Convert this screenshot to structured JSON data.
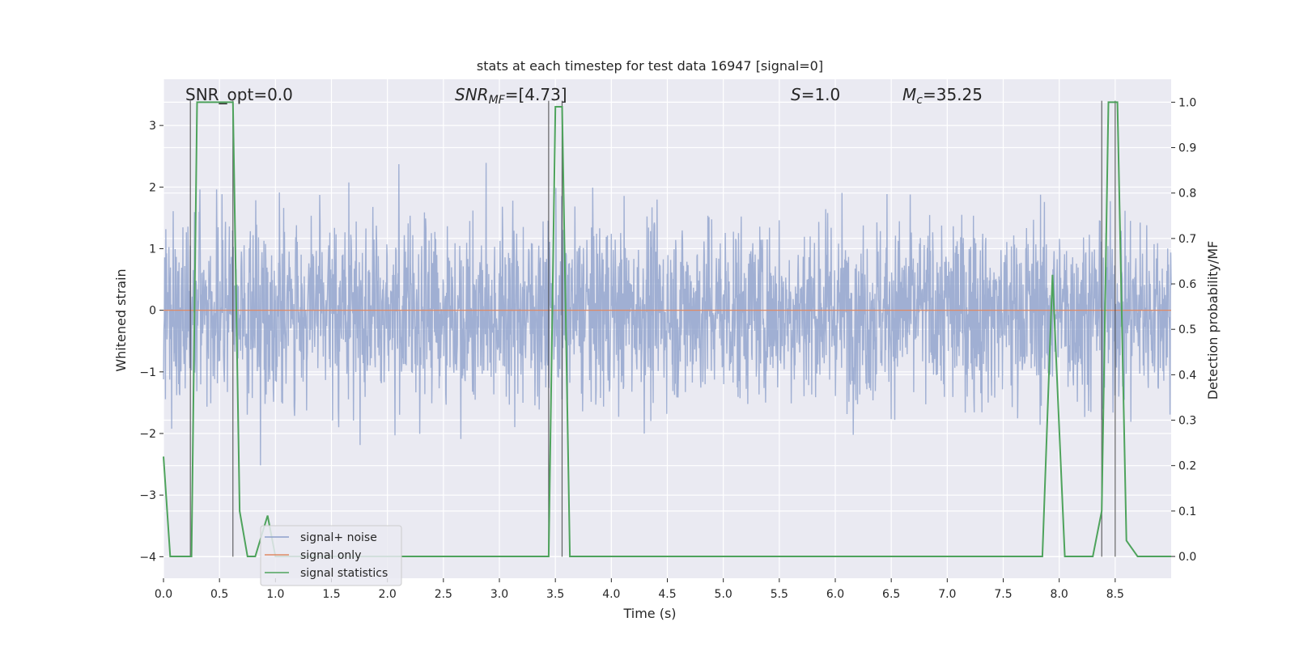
{
  "chart_data": {
    "type": "line",
    "title": "stats at each timestep for test data 16947 [signal=0]",
    "xlabel": "Time (s)",
    "ylabel": "Whitened strain",
    "y2label": "Detection probability/MF",
    "xlim": [
      0.0,
      9.0
    ],
    "ylim": [
      -4.35,
      3.75
    ],
    "y2lim": [
      -0.048,
      1.0505
    ],
    "x_ticks": [
      0.0,
      0.5,
      1.0,
      1.5,
      2.0,
      2.5,
      3.0,
      3.5,
      4.0,
      4.5,
      5.0,
      5.5,
      6.0,
      6.5,
      7.0,
      7.5,
      8.0,
      8.5
    ],
    "x_tick_labels": [
      "0.0",
      "0.5",
      "1.0",
      "1.5",
      "2.0",
      "2.5",
      "3.0",
      "3.5",
      "4.0",
      "4.5",
      "5.0",
      "5.5",
      "6.0",
      "6.5",
      "7.0",
      "7.5",
      "8.0",
      "8.5"
    ],
    "y_ticks": [
      3,
      2,
      1,
      0,
      -1,
      -2,
      -3,
      -4
    ],
    "y_tick_labels": [
      "3",
      "2",
      "1",
      "0",
      "−1",
      "−2",
      "−3",
      "−4"
    ],
    "y2_ticks": [
      1.0,
      0.9,
      0.8,
      0.7,
      0.6,
      0.5,
      0.4,
      0.3,
      0.2,
      0.1,
      0.0
    ],
    "y2_tick_labels": [
      "1.0",
      "0.9",
      "0.8",
      "0.7",
      "0.6",
      "0.5",
      "0.4",
      "0.3",
      "0.2",
      "0.1",
      "0.0"
    ],
    "grid": true,
    "legend_position": "lower-left",
    "annotations": {
      "snr_opt": "SNR_opt=0.0",
      "snr_mf_main": "SNR",
      "snr_mf_sub": "MF",
      "snr_mf_value": "=[4.73]",
      "s_main": "S",
      "s_value": "=1.0",
      "mc_main": "M",
      "mc_sub": "c",
      "mc_value": "=35.25"
    },
    "series": [
      {
        "name": "signal+ noise",
        "color": "#8da0cb",
        "description_only": false
      },
      {
        "name": "signal only",
        "color": "#e08a64",
        "values_constant": 0
      },
      {
        "name": "signal statistics",
        "color": "#4ea35c",
        "x": [
          0.0,
          0.06,
          0.2,
          0.25,
          0.3,
          0.62,
          0.68,
          0.75,
          0.82,
          0.93,
          1.0,
          1.5,
          3.0,
          3.44,
          3.5,
          3.56,
          3.63,
          3.7,
          5.0,
          7.85,
          7.94,
          8.05,
          8.3,
          8.38,
          8.44,
          8.52,
          8.6,
          8.7,
          9.0
        ],
        "values": [
          0.22,
          0.0,
          0.0,
          0.0,
          1.0,
          1.0,
          0.1,
          0.0,
          0.0,
          0.09,
          0.0,
          0.0,
          0.0,
          0.0,
          0.99,
          0.99,
          0.0,
          0.0,
          0.0,
          0.0,
          0.62,
          0.0,
          0.0,
          0.1,
          1.0,
          1.0,
          0.035,
          0.0,
          0.0
        ]
      }
    ],
    "vertical_markers": [
      0.24,
      0.62,
      3.44,
      3.56,
      8.38,
      8.5
    ],
    "noise_band": {
      "typical_amplitude": 1.4,
      "max_amplitude": 3.4,
      "min_amplitude": -4.0
    }
  }
}
